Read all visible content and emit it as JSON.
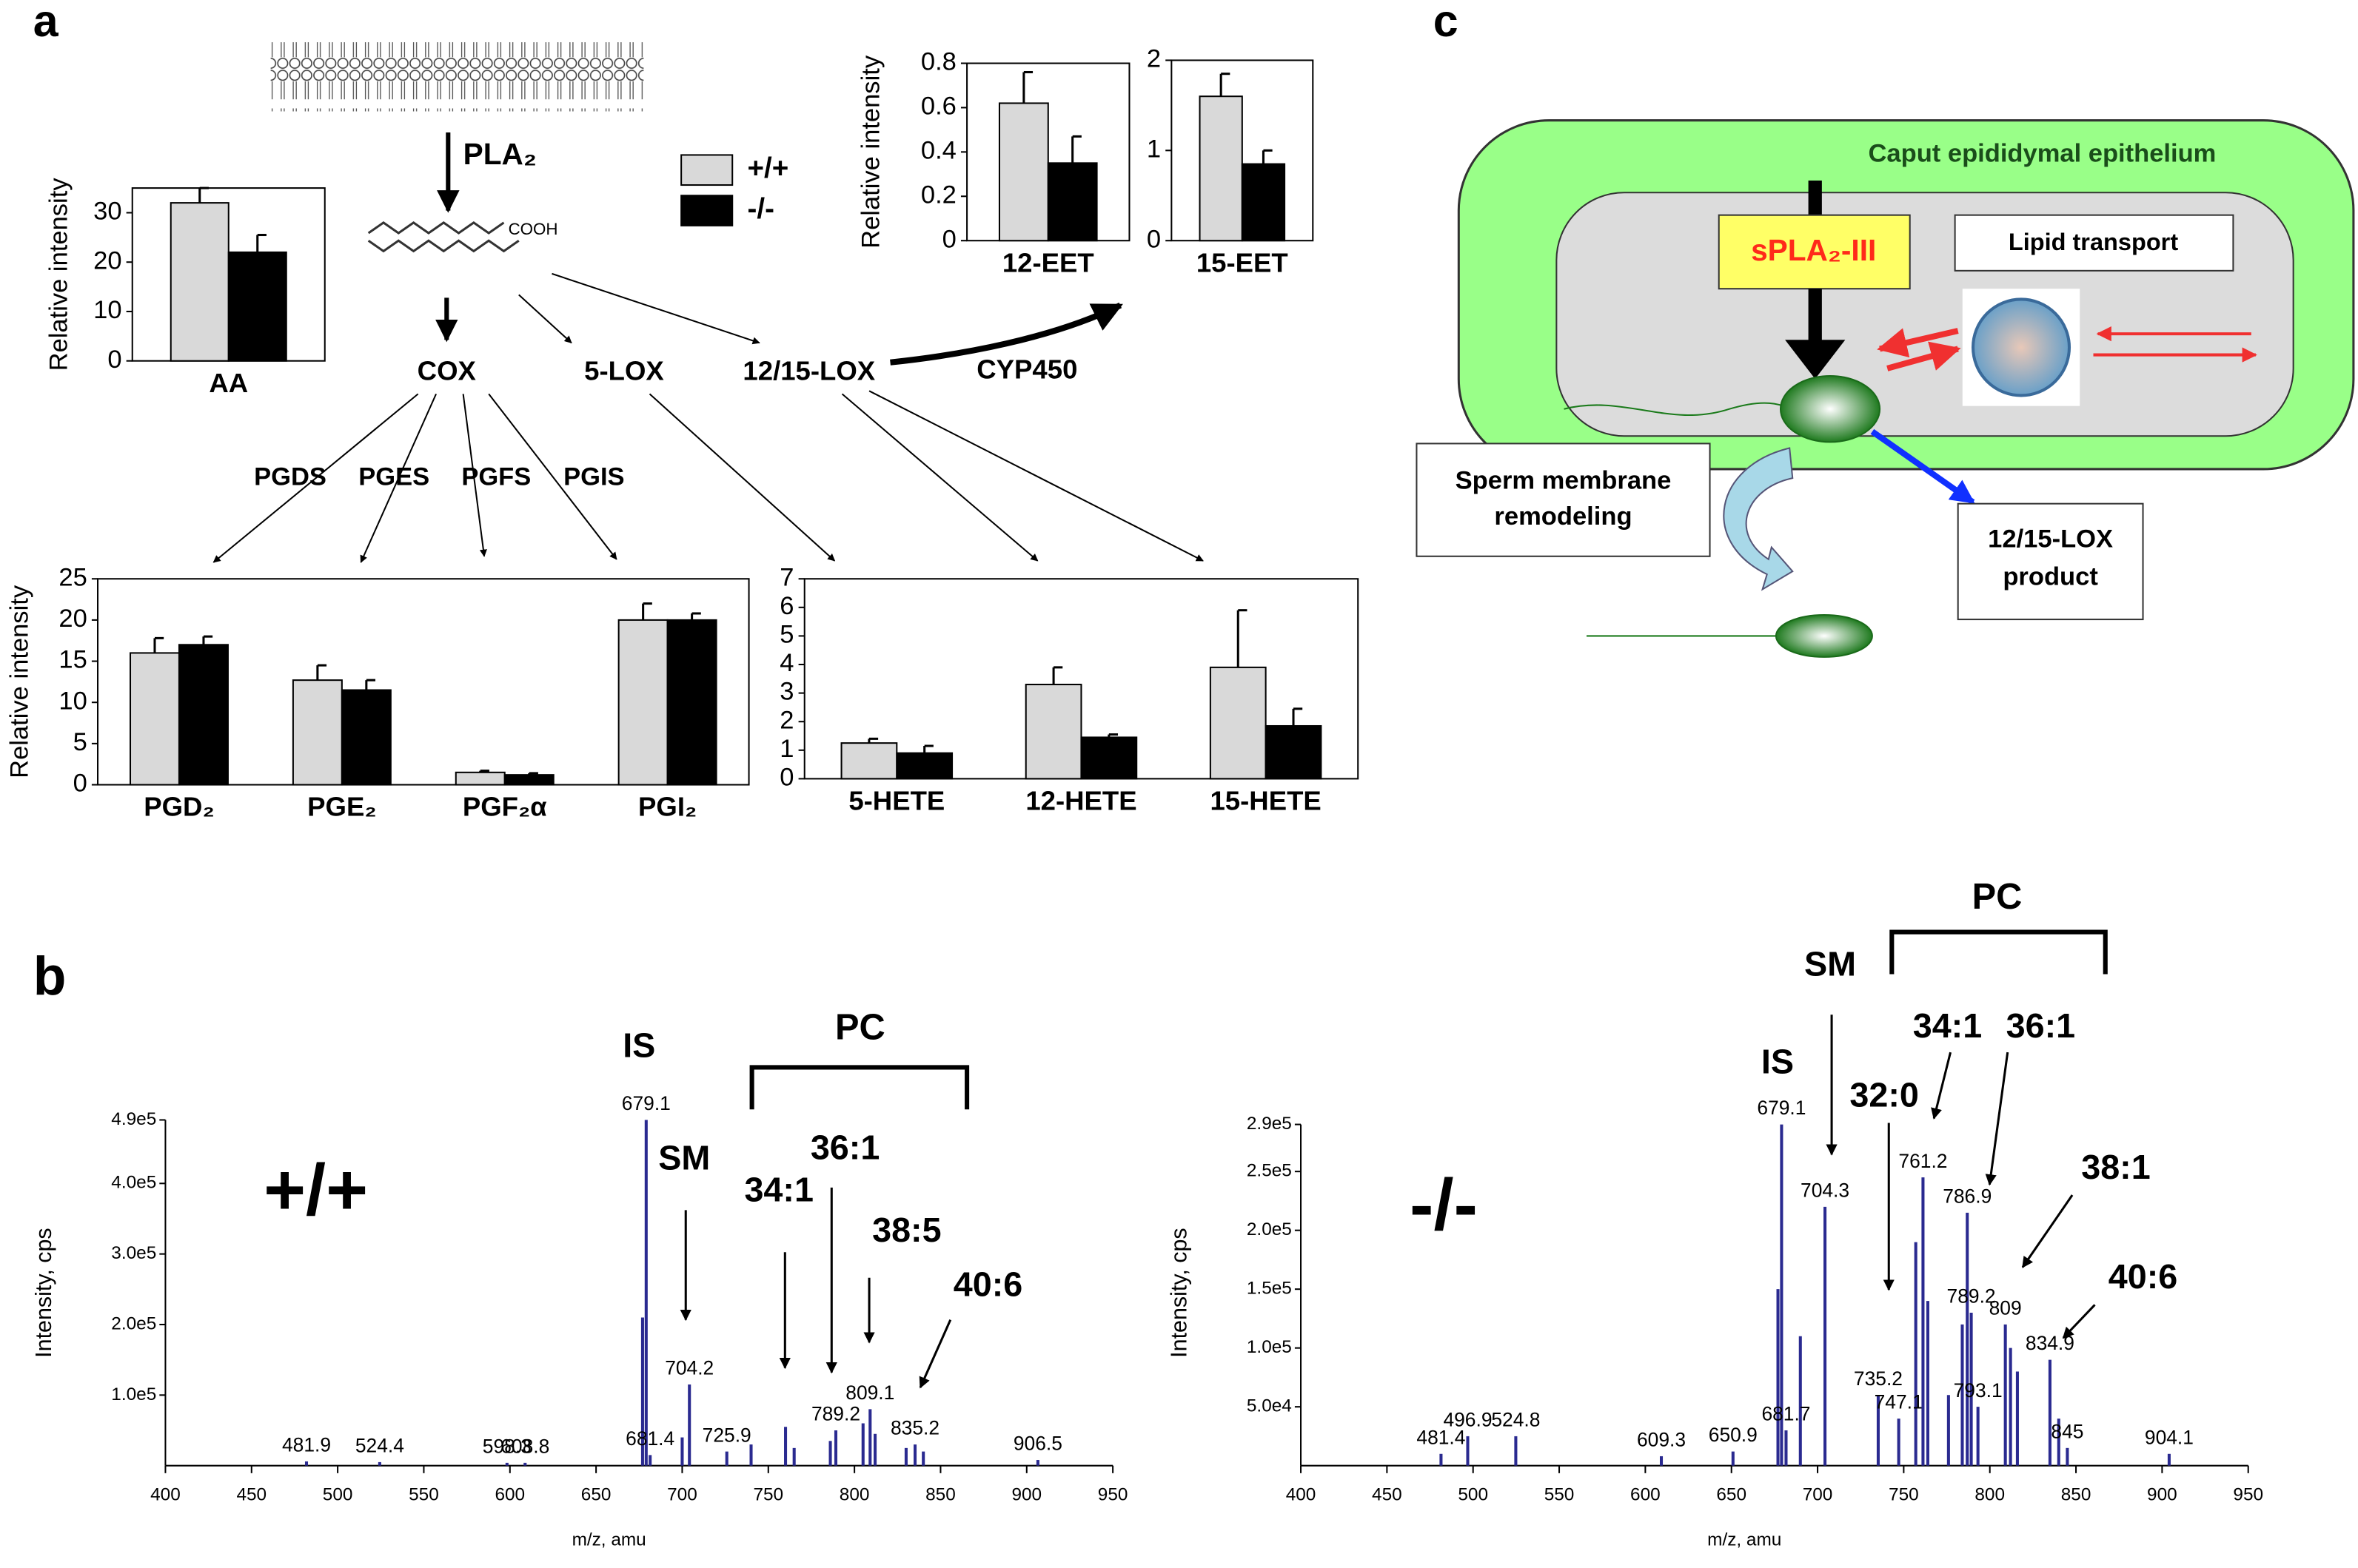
{
  "panels": [
    "a",
    "b",
    "c"
  ],
  "pathway": {
    "enzyme": "PLA₂",
    "acid_group": "COOH",
    "branches": [
      "COX",
      "5-LOX",
      "12/15-LOX",
      "CYP450"
    ],
    "synthases": [
      "PGDS",
      "PGES",
      "PGFS",
      "PGIS"
    ]
  },
  "legend": {
    "series": [
      {
        "name": "+/+",
        "color": "#d9d9d9"
      },
      {
        "name": "-/-",
        "color": "#000000"
      }
    ]
  },
  "chart_data": [
    {
      "type": "bar",
      "ylabel": "Relative intensity",
      "categories": [
        "AA"
      ],
      "series": [
        {
          "values": [
            32
          ],
          "errors": [
            3
          ]
        },
        {
          "values": [
            22
          ],
          "errors": [
            3.5
          ]
        }
      ],
      "ylim": [
        0,
        35
      ],
      "yticks": [
        0,
        10,
        20,
        30
      ]
    },
    {
      "type": "bar",
      "ylabel": "Relative intensity",
      "categories": [
        "12-EET"
      ],
      "series": [
        {
          "values": [
            0.62
          ],
          "errors": [
            0.14
          ]
        },
        {
          "values": [
            0.35
          ],
          "errors": [
            0.12
          ]
        }
      ],
      "ylim": [
        0,
        0.8
      ],
      "yticks": [
        0,
        0.2,
        0.4,
        0.6,
        0.8
      ]
    },
    {
      "type": "bar",
      "categories": [
        "15-EET"
      ],
      "series": [
        {
          "values": [
            1.6
          ],
          "errors": [
            0.25
          ]
        },
        {
          "values": [
            0.85
          ],
          "errors": [
            0.15
          ]
        }
      ],
      "ylim": [
        0,
        2
      ],
      "yticks": [
        0,
        1,
        2
      ]
    },
    {
      "type": "bar",
      "ylabel": "Relative intensity",
      "categories": [
        "PGD₂",
        "PGE₂",
        "PGF₂α",
        "PGI₂"
      ],
      "series": [
        {
          "values": [
            16,
            12.7,
            1.5,
            20
          ],
          "errors": [
            1.8,
            1.8,
            0.2,
            2
          ]
        },
        {
          "values": [
            17,
            11.5,
            1.2,
            20
          ],
          "errors": [
            1,
            1.2,
            0.2,
            0.8
          ]
        }
      ],
      "ylim": [
        0,
        25
      ],
      "yticks": [
        0,
        5,
        10,
        15,
        20,
        25
      ]
    },
    {
      "type": "bar",
      "categories": [
        "5-HETE",
        "12-HETE",
        "15-HETE"
      ],
      "series": [
        {
          "values": [
            1.25,
            3.3,
            3.9
          ],
          "errors": [
            0.15,
            0.6,
            2
          ]
        },
        {
          "values": [
            0.9,
            1.45,
            1.85
          ],
          "errors": [
            0.25,
            0.1,
            0.6
          ]
        }
      ],
      "ylim": [
        0,
        7
      ],
      "yticks": [
        0,
        1,
        2,
        3,
        4,
        5,
        6,
        7
      ]
    },
    {
      "type": "spectrum",
      "genotype": "+/+",
      "ylabel": "Intensity, cps",
      "xlabel": "m/z, amu",
      "xlim": [
        400,
        950
      ],
      "xticks": [
        400,
        450,
        500,
        550,
        600,
        650,
        700,
        750,
        800,
        850,
        900,
        950
      ],
      "ylim": [
        0,
        490000
      ],
      "yticks": [
        {
          "value": 100000,
          "label": "1.0e5"
        },
        {
          "value": 200000,
          "label": "2.0e5"
        },
        {
          "value": 300000,
          "label": "3.0e5"
        },
        {
          "value": 400000,
          "label": "4.0e5"
        },
        {
          "value": 490000,
          "label": "4.9e5"
        }
      ],
      "x": [
        481.9,
        524.4,
        598.3,
        608.8,
        679.1,
        681.4,
        704.2,
        725.9,
        789.2,
        809.1,
        835.2,
        906.5
      ],
      "values": [
        6000,
        5000,
        4000,
        4000,
        490000,
        15000,
        115000,
        20000,
        50000,
        80000,
        30000,
        8000
      ],
      "unlabeled_x": [
        677,
        700,
        740,
        760,
        765,
        786,
        805,
        812,
        830,
        840
      ],
      "unlabeled_values": [
        210000,
        40000,
        30000,
        55000,
        25000,
        35000,
        60000,
        45000,
        25000,
        20000
      ],
      "annotations": [
        "IS",
        "SM",
        "34:1",
        "36:1",
        "38:5",
        "40:6"
      ],
      "bracket_label": "PC"
    },
    {
      "type": "spectrum",
      "genotype": "-/-",
      "ylabel": "Intensity, cps",
      "xlabel": "m/z, amu",
      "xlim": [
        400,
        950
      ],
      "xticks": [
        400,
        450,
        500,
        550,
        600,
        650,
        700,
        750,
        800,
        850,
        900,
        950
      ],
      "ylim": [
        0,
        290000
      ],
      "yticks": [
        {
          "value": 50000,
          "label": "5.0e4"
        },
        {
          "value": 100000,
          "label": "1.0e5"
        },
        {
          "value": 150000,
          "label": "1.5e5"
        },
        {
          "value": 200000,
          "label": "2.0e5"
        },
        {
          "value": 250000,
          "label": "2.5e5"
        },
        {
          "value": 290000,
          "label": "2.9e5"
        }
      ],
      "x": [
        481.4,
        496.9,
        524.8,
        609.3,
        650.9,
        679.1,
        681.7,
        704.3,
        735.2,
        747.1,
        761.2,
        786.9,
        789.2,
        793.1,
        809.0,
        834.9,
        845.0,
        904.1
      ],
      "values": [
        10000,
        25000,
        25000,
        8000,
        12000,
        290000,
        30000,
        220000,
        60000,
        40000,
        245000,
        215000,
        130000,
        50000,
        120000,
        90000,
        15000,
        10000
      ],
      "unlabeled_x": [
        677,
        690,
        757,
        764,
        776,
        784,
        812,
        816,
        840
      ],
      "unlabeled_values": [
        150000,
        110000,
        190000,
        140000,
        60000,
        120000,
        100000,
        80000,
        40000
      ],
      "annotations": [
        "IS",
        "SM",
        "32:0",
        "34:1",
        "36:1",
        "38:1",
        "40:6"
      ],
      "bracket_label": "PC"
    }
  ],
  "diagram": {
    "tissue": "Caput epididymal epithelium",
    "enzyme": "sPLA₂-III",
    "transport": "Lipid transport",
    "remodeling": "Sperm membrane remodeling",
    "product": "12/15-LOX product"
  }
}
